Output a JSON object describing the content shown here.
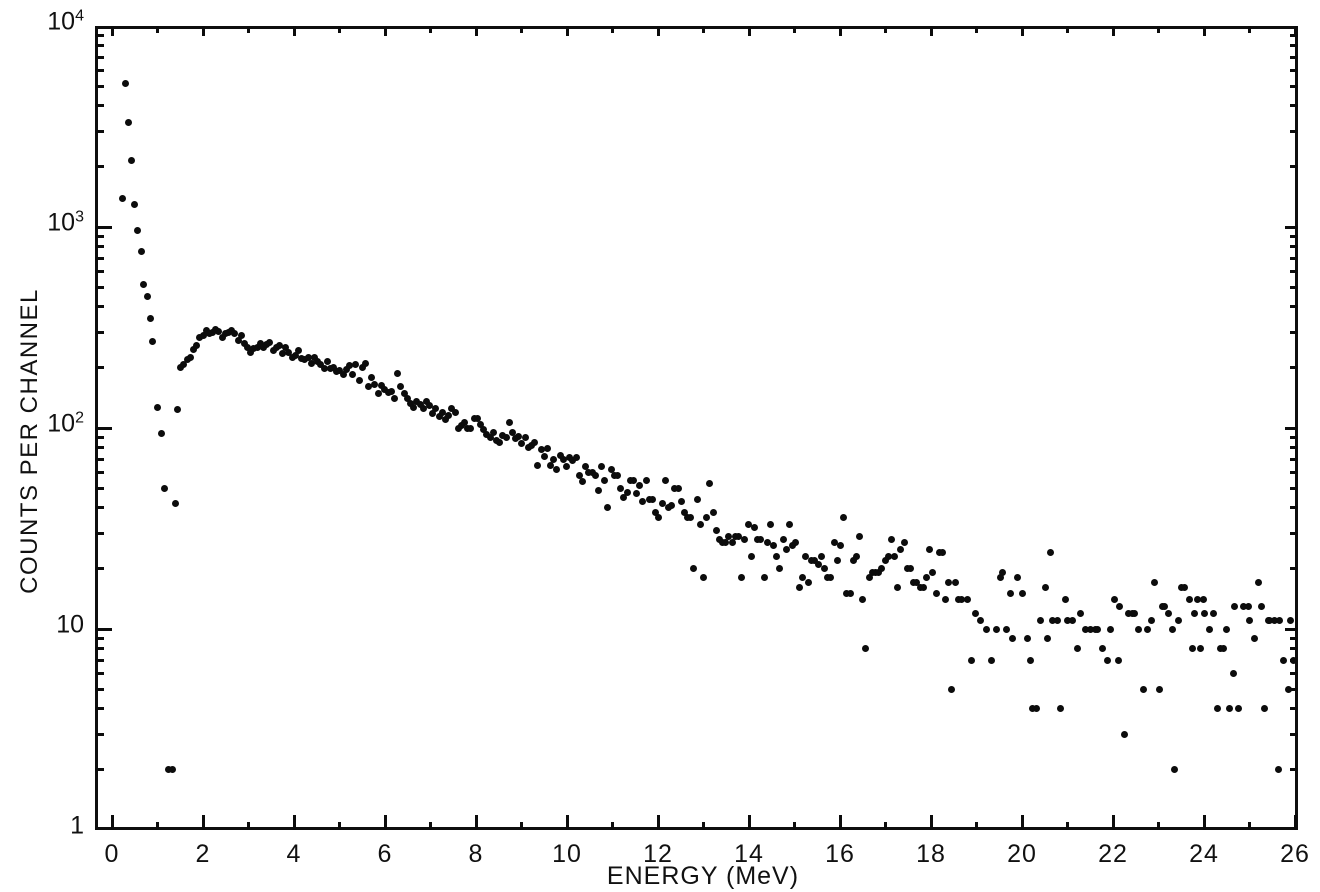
{
  "figure": {
    "background": "#ffffff",
    "ink": "#0c0c0c"
  },
  "chart_data": {
    "type": "scatter",
    "title": "",
    "xlabel": "ENERGY (MeV)",
    "ylabel": "COUNTS PER CHANNEL",
    "grid": false,
    "legend": null,
    "marker": "filled-dot",
    "x_axis": {
      "min": 0,
      "max": 26,
      "tick_step": 1,
      "label_step": 2,
      "ticks": [
        {
          "v": 0,
          "label": "0"
        },
        {
          "v": 2,
          "label": "2"
        },
        {
          "v": 4,
          "label": "4"
        },
        {
          "v": 6,
          "label": "6"
        },
        {
          "v": 8,
          "label": "8"
        },
        {
          "v": 10,
          "label": "10"
        },
        {
          "v": 12,
          "label": "12"
        },
        {
          "v": 14,
          "label": "14"
        },
        {
          "v": 16,
          "label": "16"
        },
        {
          "v": 18,
          "label": "18"
        },
        {
          "v": 20,
          "label": "20"
        },
        {
          "v": 22,
          "label": "22"
        },
        {
          "v": 24,
          "label": "24"
        },
        {
          "v": 26,
          "label": "26"
        }
      ]
    },
    "y_axis": {
      "scale": "log",
      "min": 1,
      "max": 10000,
      "minor_ticks": "2-9 each decade",
      "ticks": [
        {
          "v": 10000,
          "base": "10",
          "exp": "4"
        },
        {
          "v": 1000,
          "base": "10",
          "exp": "3"
        },
        {
          "v": 100,
          "base": "10",
          "exp": "2"
        },
        {
          "v": 10,
          "base": "10",
          "exp": ""
        },
        {
          "v": 1,
          "base": "1",
          "exp": ""
        }
      ]
    },
    "points": [
      [
        0.22,
        1380
      ],
      [
        0.29,
        5200
      ],
      [
        0.36,
        3300
      ],
      [
        0.43,
        2150
      ],
      [
        0.5,
        1290
      ],
      [
        0.57,
        960
      ],
      [
        0.64,
        755
      ],
      [
        0.7,
        515
      ],
      [
        0.77,
        450
      ],
      [
        0.84,
        352
      ],
      [
        0.9,
        268
      ],
      [
        1.0,
        127
      ],
      [
        1.08,
        94
      ],
      [
        1.16,
        50
      ],
      [
        1.24,
        2
      ],
      [
        1.32,
        2
      ],
      [
        1.4,
        42
      ],
      [
        1.45,
        124
      ],
      [
        1.51,
        200
      ],
      [
        1.58,
        206
      ],
      [
        1.65,
        218
      ],
      [
        1.72,
        225
      ],
      [
        1.79,
        246
      ],
      [
        1.86,
        258
      ],
      [
        1.93,
        282
      ],
      [
        2.0,
        290
      ],
      [
        2.07,
        306
      ],
      [
        2.14,
        296
      ],
      [
        2.21,
        299
      ],
      [
        2.28,
        310
      ],
      [
        2.35,
        302
      ],
      [
        2.42,
        283
      ],
      [
        2.49,
        296
      ],
      [
        2.56,
        300
      ],
      [
        2.63,
        305
      ],
      [
        2.7,
        295
      ],
      [
        2.77,
        273
      ],
      [
        2.84,
        288
      ],
      [
        2.91,
        262
      ],
      [
        2.98,
        252
      ],
      [
        3.05,
        238
      ],
      [
        3.12,
        249
      ],
      [
        3.19,
        252
      ],
      [
        3.26,
        264
      ],
      [
        3.33,
        252
      ],
      [
        3.4,
        260
      ],
      [
        3.47,
        267
      ],
      [
        3.54,
        244
      ],
      [
        3.61,
        252
      ],
      [
        3.68,
        258
      ],
      [
        3.75,
        235
      ],
      [
        3.82,
        251
      ],
      [
        3.89,
        238
      ],
      [
        3.96,
        225
      ],
      [
        4.03,
        230
      ],
      [
        4.1,
        242
      ],
      [
        4.17,
        222
      ],
      [
        4.24,
        218
      ],
      [
        4.31,
        223
      ],
      [
        4.38,
        210
      ],
      [
        4.45,
        225
      ],
      [
        4.52,
        213
      ],
      [
        4.59,
        208
      ],
      [
        4.66,
        198
      ],
      [
        4.73,
        213
      ],
      [
        4.8,
        198
      ],
      [
        4.87,
        201
      ],
      [
        4.94,
        190
      ],
      [
        5.01,
        194
      ],
      [
        5.08,
        184
      ],
      [
        5.15,
        195
      ],
      [
        5.22,
        205
      ],
      [
        5.29,
        184
      ],
      [
        5.36,
        208
      ],
      [
        5.43,
        173
      ],
      [
        5.5,
        200
      ],
      [
        5.57,
        210
      ],
      [
        5.64,
        160
      ],
      [
        5.71,
        178
      ],
      [
        5.78,
        164
      ],
      [
        5.85,
        148
      ],
      [
        5.92,
        163
      ],
      [
        5.99,
        155
      ],
      [
        6.07,
        150
      ],
      [
        6.14,
        152
      ],
      [
        6.21,
        141
      ],
      [
        6.28,
        187
      ],
      [
        6.35,
        160
      ],
      [
        6.42,
        149
      ],
      [
        6.49,
        140
      ],
      [
        6.56,
        133
      ],
      [
        6.63,
        127
      ],
      [
        6.7,
        136
      ],
      [
        6.77,
        131
      ],
      [
        6.84,
        125
      ],
      [
        6.91,
        135
      ],
      [
        6.98,
        129
      ],
      [
        7.05,
        118
      ],
      [
        7.12,
        125
      ],
      [
        7.19,
        114
      ],
      [
        7.26,
        120
      ],
      [
        7.33,
        110
      ],
      [
        7.4,
        116
      ],
      [
        7.47,
        125
      ],
      [
        7.54,
        120
      ],
      [
        7.61,
        100
      ],
      [
        7.68,
        103
      ],
      [
        7.75,
        106
      ],
      [
        7.82,
        100
      ],
      [
        7.89,
        99
      ],
      [
        7.96,
        112
      ],
      [
        8.03,
        112
      ],
      [
        8.1,
        104
      ],
      [
        8.17,
        98
      ],
      [
        8.24,
        93
      ],
      [
        8.31,
        90
      ],
      [
        8.38,
        95
      ],
      [
        8.45,
        87
      ],
      [
        8.52,
        85
      ],
      [
        8.59,
        92
      ],
      [
        8.66,
        90
      ],
      [
        8.73,
        107
      ],
      [
        8.8,
        95
      ],
      [
        8.87,
        89
      ],
      [
        8.94,
        91
      ],
      [
        9.01,
        84
      ],
      [
        9.08,
        90
      ],
      [
        9.15,
        80
      ],
      [
        9.22,
        82
      ],
      [
        9.29,
        85
      ],
      [
        9.36,
        65
      ],
      [
        9.43,
        78
      ],
      [
        9.5,
        72
      ],
      [
        9.57,
        79
      ],
      [
        9.64,
        65
      ],
      [
        9.71,
        70
      ],
      [
        9.78,
        62
      ],
      [
        9.85,
        73
      ],
      [
        9.92,
        70
      ],
      [
        9.99,
        64
      ],
      [
        10.06,
        71
      ],
      [
        10.13,
        69
      ],
      [
        10.2,
        71
      ],
      [
        10.27,
        58
      ],
      [
        10.34,
        54
      ],
      [
        10.41,
        64
      ],
      [
        10.48,
        60
      ],
      [
        10.55,
        60
      ],
      [
        10.62,
        58
      ],
      [
        10.69,
        49
      ],
      [
        10.76,
        64
      ],
      [
        10.83,
        55
      ],
      [
        10.9,
        40
      ],
      [
        10.97,
        62
      ],
      [
        11.04,
        58
      ],
      [
        11.11,
        58
      ],
      [
        11.18,
        50
      ],
      [
        11.25,
        45
      ],
      [
        11.32,
        48
      ],
      [
        11.39,
        55
      ],
      [
        11.46,
        55
      ],
      [
        11.53,
        47
      ],
      [
        11.6,
        52
      ],
      [
        11.67,
        43
      ],
      [
        11.74,
        55
      ],
      [
        11.81,
        44
      ],
      [
        11.88,
        44
      ],
      [
        11.95,
        38
      ],
      [
        12.02,
        36
      ],
      [
        12.09,
        42
      ],
      [
        12.16,
        55
      ],
      [
        12.23,
        40
      ],
      [
        12.3,
        41
      ],
      [
        12.37,
        50
      ],
      [
        12.44,
        50
      ],
      [
        12.51,
        43
      ],
      [
        12.58,
        38
      ],
      [
        12.65,
        36
      ],
      [
        12.72,
        36
      ],
      [
        12.79,
        20
      ],
      [
        12.86,
        44
      ],
      [
        12.93,
        33
      ],
      [
        13.0,
        18
      ],
      [
        13.07,
        36
      ],
      [
        13.14,
        53
      ],
      [
        13.21,
        38
      ],
      [
        13.28,
        31
      ],
      [
        13.35,
        28
      ],
      [
        13.42,
        27
      ],
      [
        13.49,
        27
      ],
      [
        13.56,
        29
      ],
      [
        13.63,
        27
      ],
      [
        13.7,
        29
      ],
      [
        13.77,
        29
      ],
      [
        13.84,
        18
      ],
      [
        13.91,
        28
      ],
      [
        13.98,
        33
      ],
      [
        14.05,
        23
      ],
      [
        14.12,
        32
      ],
      [
        14.19,
        28
      ],
      [
        14.26,
        28
      ],
      [
        14.33,
        18
      ],
      [
        14.4,
        27
      ],
      [
        14.47,
        33
      ],
      [
        14.54,
        26
      ],
      [
        14.61,
        23
      ],
      [
        14.68,
        20
      ],
      [
        14.75,
        28
      ],
      [
        14.82,
        25
      ],
      [
        14.89,
        33
      ],
      [
        14.96,
        26
      ],
      [
        15.03,
        27
      ],
      [
        15.1,
        16
      ],
      [
        15.17,
        18
      ],
      [
        15.24,
        23
      ],
      [
        15.31,
        17
      ],
      [
        15.38,
        22
      ],
      [
        15.45,
        22
      ],
      [
        15.52,
        21
      ],
      [
        15.59,
        23
      ],
      [
        15.66,
        20
      ],
      [
        15.73,
        18
      ],
      [
        15.8,
        18
      ],
      [
        15.87,
        27
      ],
      [
        15.94,
        22
      ],
      [
        16.01,
        26
      ],
      [
        16.08,
        36
      ],
      [
        16.15,
        15
      ],
      [
        16.22,
        15
      ],
      [
        16.29,
        22
      ],
      [
        16.36,
        23
      ],
      [
        16.43,
        29
      ],
      [
        16.5,
        14
      ],
      [
        16.57,
        8
      ],
      [
        16.64,
        18
      ],
      [
        16.71,
        19
      ],
      [
        16.78,
        19
      ],
      [
        16.85,
        19
      ],
      [
        16.92,
        20
      ],
      [
        16.99,
        22
      ],
      [
        17.06,
        23
      ],
      [
        17.13,
        28
      ],
      [
        17.2,
        23
      ],
      [
        17.27,
        16
      ],
      [
        17.34,
        25
      ],
      [
        17.41,
        27
      ],
      [
        17.48,
        20
      ],
      [
        17.55,
        20
      ],
      [
        17.62,
        17
      ],
      [
        17.69,
        17
      ],
      [
        17.76,
        16
      ],
      [
        17.83,
        16
      ],
      [
        17.9,
        18
      ],
      [
        17.97,
        25
      ],
      [
        18.04,
        19
      ],
      [
        18.11,
        15
      ],
      [
        18.18,
        24
      ],
      [
        18.25,
        24
      ],
      [
        18.32,
        14
      ],
      [
        18.39,
        17
      ],
      [
        18.46,
        5
      ],
      [
        18.53,
        17
      ],
      [
        18.6,
        14
      ],
      [
        18.68,
        14
      ],
      [
        18.81,
        14
      ],
      [
        18.9,
        7
      ],
      [
        18.97,
        12
      ],
      [
        19.08,
        11
      ],
      [
        19.23,
        10
      ],
      [
        19.33,
        7
      ],
      [
        19.45,
        10
      ],
      [
        19.52,
        18
      ],
      [
        19.58,
        19
      ],
      [
        19.67,
        10
      ],
      [
        19.74,
        15
      ],
      [
        19.8,
        9
      ],
      [
        19.91,
        18
      ],
      [
        20.02,
        15
      ],
      [
        20.11,
        9
      ],
      [
        20.18,
        7
      ],
      [
        20.24,
        4
      ],
      [
        20.31,
        4
      ],
      [
        20.4,
        11
      ],
      [
        20.51,
        16
      ],
      [
        20.55,
        9
      ],
      [
        20.62,
        24
      ],
      [
        20.68,
        11
      ],
      [
        20.79,
        11
      ],
      [
        20.84,
        4
      ],
      [
        20.95,
        14
      ],
      [
        20.99,
        11
      ],
      [
        21.1,
        11
      ],
      [
        21.21,
        8
      ],
      [
        21.28,
        12
      ],
      [
        21.39,
        10
      ],
      [
        21.5,
        10
      ],
      [
        21.61,
        10
      ],
      [
        21.67,
        10
      ],
      [
        21.78,
        8
      ],
      [
        21.87,
        7
      ],
      [
        21.95,
        10
      ],
      [
        22.04,
        14
      ],
      [
        22.11,
        7
      ],
      [
        22.15,
        13
      ],
      [
        22.26,
        3
      ],
      [
        22.35,
        12
      ],
      [
        22.42,
        12
      ],
      [
        22.48,
        12
      ],
      [
        22.57,
        10
      ],
      [
        22.66,
        5
      ],
      [
        22.75,
        10
      ],
      [
        22.84,
        11
      ],
      [
        22.92,
        17
      ],
      [
        23.03,
        5
      ],
      [
        23.08,
        13
      ],
      [
        23.14,
        13
      ],
      [
        23.21,
        12
      ],
      [
        23.3,
        10
      ],
      [
        23.36,
        2
      ],
      [
        23.43,
        11
      ],
      [
        23.5,
        16
      ],
      [
        23.58,
        16
      ],
      [
        23.69,
        14
      ],
      [
        23.75,
        8
      ],
      [
        23.8,
        12
      ],
      [
        23.85,
        14
      ],
      [
        23.92,
        8
      ],
      [
        23.98,
        14
      ],
      [
        24.02,
        12
      ],
      [
        24.13,
        10
      ],
      [
        24.2,
        12
      ],
      [
        24.29,
        4
      ],
      [
        24.36,
        8
      ],
      [
        24.42,
        8
      ],
      [
        24.5,
        10
      ],
      [
        24.57,
        4
      ],
      [
        24.64,
        6
      ],
      [
        24.68,
        13
      ],
      [
        24.75,
        4
      ],
      [
        24.86,
        13
      ],
      [
        24.97,
        13
      ],
      [
        25.01,
        11
      ],
      [
        25.12,
        9
      ],
      [
        25.19,
        17
      ],
      [
        25.26,
        13
      ],
      [
        25.34,
        4
      ],
      [
        25.41,
        11
      ],
      [
        25.45,
        11
      ],
      [
        25.56,
        11
      ],
      [
        25.63,
        2
      ],
      [
        25.67,
        11
      ],
      [
        25.74,
        7
      ],
      [
        25.85,
        5
      ],
      [
        25.9,
        11
      ],
      [
        25.97,
        7
      ]
    ]
  }
}
